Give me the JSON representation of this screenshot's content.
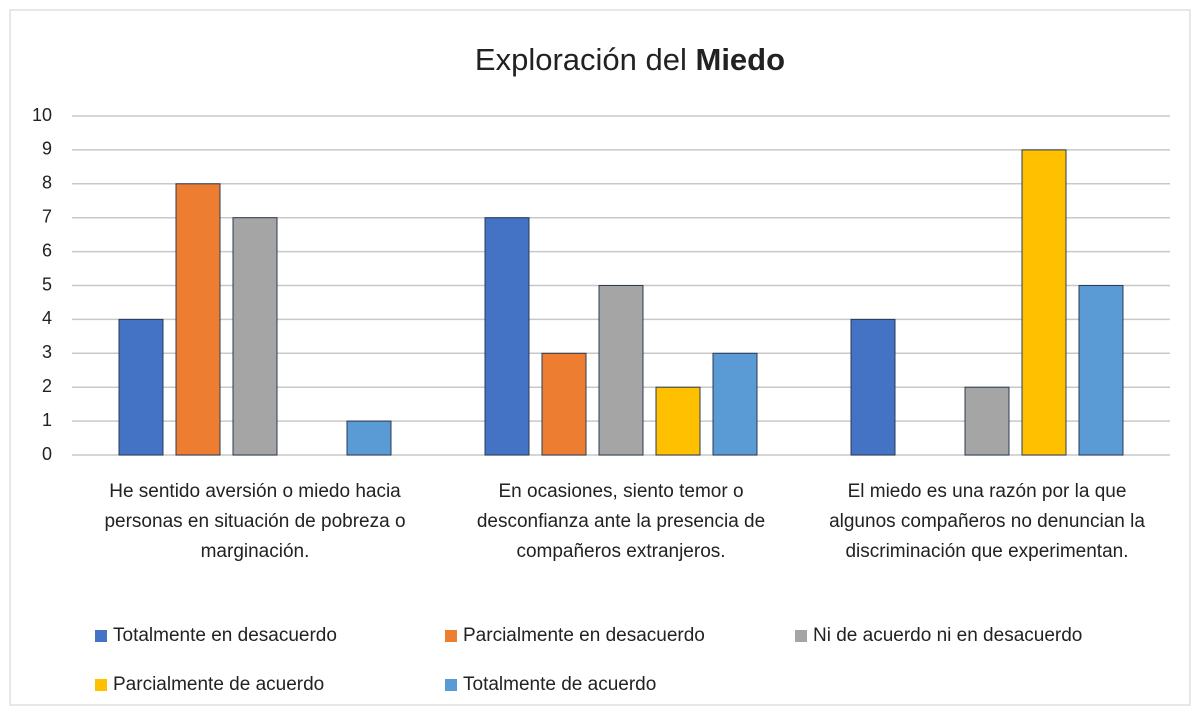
{
  "chart_data": {
    "type": "bar",
    "title": "Exploración del Miedo",
    "categories": [
      "He sentido aversión o miedo hacia personas en situación de pobreza o marginación.",
      "En ocasiones, siento temor o desconfianza ante la presencia de compañeros extranjeros.",
      "El miedo es una razón por la que algunos compañeros no denuncian la discriminación que experimentan."
    ],
    "series": [
      {
        "name": "Totalmente en desacuerdo",
        "color": "#4472c4",
        "values": [
          4,
          7,
          4
        ]
      },
      {
        "name": "Parcialmente en desacuerdo",
        "color": "#ed7d31",
        "values": [
          8,
          3,
          0
        ]
      },
      {
        "name": "Ni de acuerdo ni en desacuerdo",
        "color": "#a5a5a5",
        "values": [
          7,
          5,
          2
        ]
      },
      {
        "name": "Parcialmente de acuerdo",
        "color": "#ffc000",
        "values": [
          0,
          2,
          9
        ]
      },
      {
        "name": "Totalmente de acuerdo",
        "color": "#5b9bd5",
        "values": [
          1,
          3,
          5
        ]
      }
    ],
    "ylim": [
      0,
      10
    ],
    "yticks": [
      0,
      1,
      2,
      3,
      4,
      5,
      6,
      7,
      8,
      9,
      10
    ],
    "grid": true,
    "legend": "bottom"
  }
}
